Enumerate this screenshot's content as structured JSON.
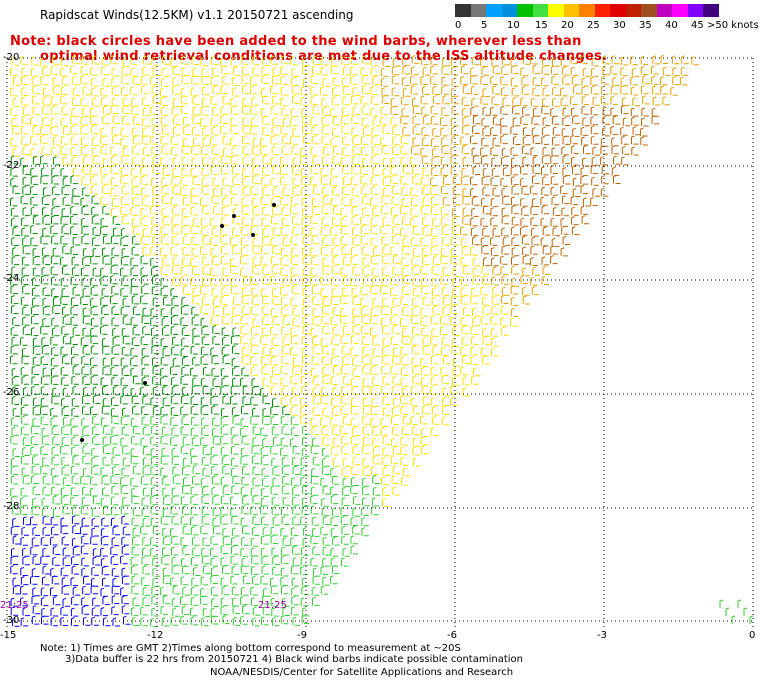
{
  "title": "Rapidscat Winds(12.5KM) v1.1 20150721 ascending",
  "note_line1": "Note: black circles have been added to the wind barbs, wherever less than",
  "note_line2": "optimal wind retrieval conditions are met due to the ISS altitude changes.",
  "legend": {
    "labels": [
      "0",
      "5",
      "10",
      "15",
      "20",
      "25",
      "30",
      "35",
      "40",
      "45",
      ">50 knots"
    ],
    "colors": [
      "#333333",
      "#777777",
      "#00a0ff",
      "#0090e0",
      "#00c000",
      "#40e040",
      "#ffff00",
      "#ffc000",
      "#ff8000",
      "#ff2000",
      "#e00000",
      "#c02000",
      "#a05020",
      "#c000c0",
      "#ff00ff",
      "#8000ff",
      "#400080"
    ]
  },
  "axes": {
    "y_labels": [
      "-20",
      "-22",
      "-24",
      "-26",
      "-28",
      "-30"
    ],
    "x_labels": [
      "-15",
      "-12",
      "-9",
      "-6",
      "-3",
      "0"
    ]
  },
  "time_labels": [
    "21:25",
    "21:25"
  ],
  "footer": {
    "line1": "Note: 1) Times are GMT 2)Times along bottom correspond to measurement at ~20S",
    "line2": "3)Data buffer is 22 hrs from 20150721 4) Black wind barbs indicate possible contamination",
    "line3": "NOAA/NESDIS/Center for Satellite Applications and Research"
  },
  "colors": {
    "green_dark": "#009000",
    "green_light": "#30d030",
    "blue": "#0000ff",
    "yellow": "#ffe000",
    "yellow_pale": "#ffff40",
    "orange": "#e8a000",
    "brown": "#c06000",
    "note_red": "#e00000"
  }
}
